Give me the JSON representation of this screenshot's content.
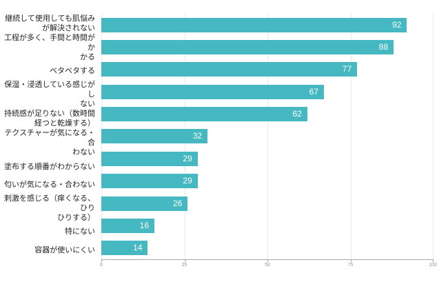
{
  "chart_data": {
    "type": "bar",
    "orientation": "horizontal",
    "title": "",
    "xlabel": "",
    "ylabel": "",
    "categories": [
      "継続して使用しても肌悩み\nが解決されない",
      "工程が多く、手間と時間がか\nかる",
      "ベタベタする",
      "保湿・浸透している感じがし\nない",
      "持続感が足りない（数時間\n経つと乾燥する）",
      "テクスチャーが気になる・合\nわない",
      "塗布する順番がわからない",
      "匂いが気になる・合わない",
      "刺激を感じる（痒くなる、ひり\nひりする）",
      "特にない",
      "容器が使いにくい"
    ],
    "values": [
      92,
      88,
      77,
      67,
      62,
      32,
      29,
      29,
      26,
      16,
      14
    ],
    "xlim": [
      0,
      100
    ],
    "x_ticks": [
      0,
      25,
      50,
      75,
      100
    ],
    "grid": true,
    "legend": false,
    "colors": {
      "bar": "#45b8c2",
      "value_label": "#ffffff",
      "category_label": "#222222",
      "gridline": "#e8e8e8",
      "axis_line": "#a6a6a6",
      "tick_label": "#919191",
      "background": "#ffffff"
    }
  }
}
